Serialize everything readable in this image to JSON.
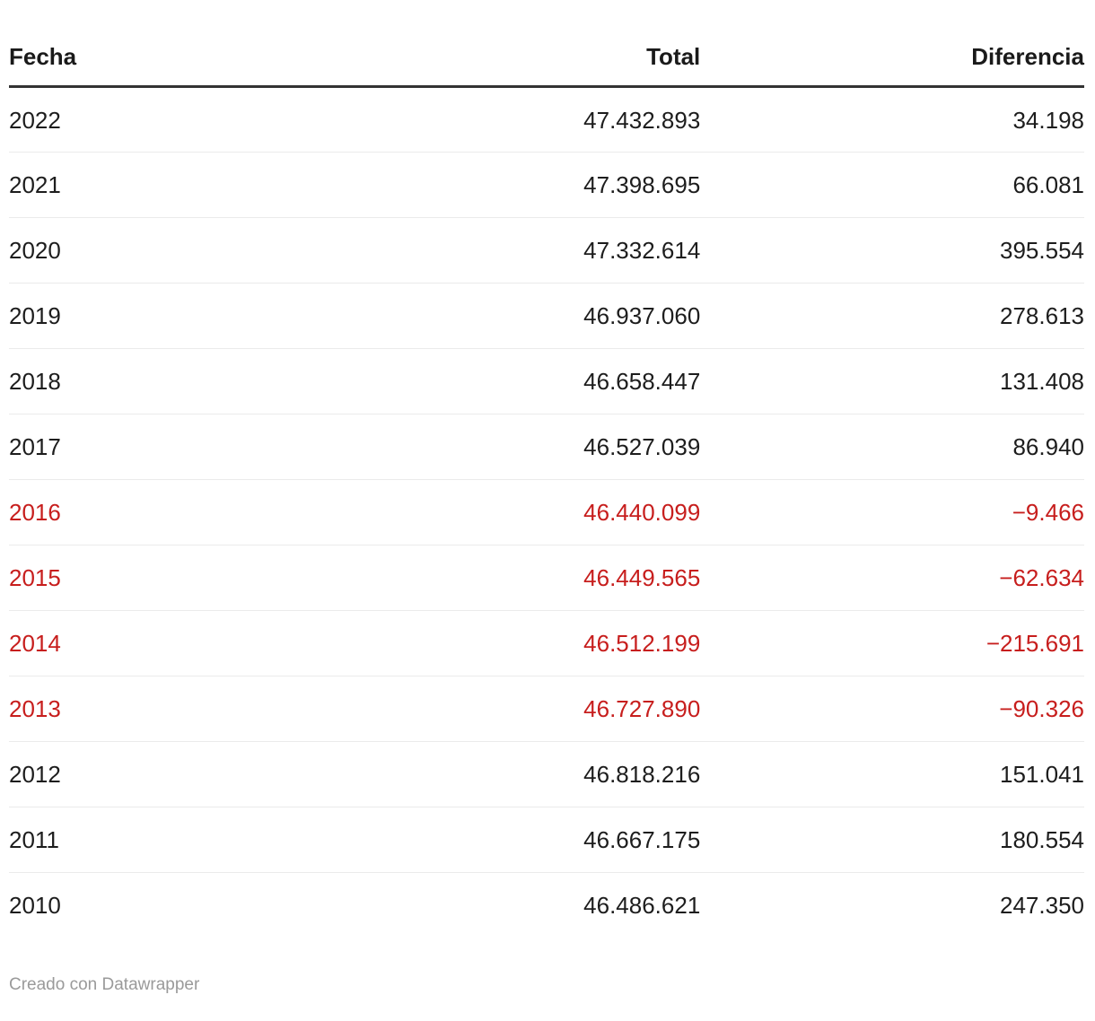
{
  "table": {
    "columns": [
      {
        "label": "Fecha",
        "align": "left"
      },
      {
        "label": "Total",
        "align": "right"
      },
      {
        "label": "Diferencia",
        "align": "right"
      }
    ],
    "rows": [
      {
        "fecha": "2022",
        "total": "47.432.893",
        "diferencia": "34.198",
        "negative": false
      },
      {
        "fecha": "2021",
        "total": "47.398.695",
        "diferencia": "66.081",
        "negative": false
      },
      {
        "fecha": "2020",
        "total": "47.332.614",
        "diferencia": "395.554",
        "negative": false
      },
      {
        "fecha": "2019",
        "total": "46.937.060",
        "diferencia": "278.613",
        "negative": false
      },
      {
        "fecha": "2018",
        "total": "46.658.447",
        "diferencia": "131.408",
        "negative": false
      },
      {
        "fecha": "2017",
        "total": "46.527.039",
        "diferencia": "86.940",
        "negative": false
      },
      {
        "fecha": "2016",
        "total": "46.440.099",
        "diferencia": "−9.466",
        "negative": true
      },
      {
        "fecha": "2015",
        "total": "46.449.565",
        "diferencia": "−62.634",
        "negative": true
      },
      {
        "fecha": "2014",
        "total": "46.512.199",
        "diferencia": "−215.691",
        "negative": true
      },
      {
        "fecha": "2013",
        "total": "46.727.890",
        "diferencia": "−90.326",
        "negative": true
      },
      {
        "fecha": "2012",
        "total": "46.818.216",
        "diferencia": "151.041",
        "negative": false
      },
      {
        "fecha": "2011",
        "total": "46.667.175",
        "diferencia": "180.554",
        "negative": false
      },
      {
        "fecha": "2010",
        "total": "46.486.621",
        "diferencia": "247.350",
        "negative": false
      }
    ]
  },
  "footer": {
    "attribution": "Creado con Datawrapper"
  },
  "colors": {
    "text": "#1d1d1d",
    "negative": "#c71e1d",
    "header_text": "#1a1a1a",
    "header_rule": "#333333",
    "row_divider": "#ebebeb",
    "footer_text": "#9a9a9a",
    "background": "#ffffff"
  },
  "chart_data": {
    "type": "table",
    "columns": [
      "Fecha",
      "Total",
      "Diferencia"
    ],
    "rows": [
      [
        2022,
        47432893,
        34198
      ],
      [
        2021,
        47398695,
        66081
      ],
      [
        2020,
        47332614,
        395554
      ],
      [
        2019,
        46937060,
        278613
      ],
      [
        2018,
        46658447,
        131408
      ],
      [
        2017,
        46527039,
        86940
      ],
      [
        2016,
        46440099,
        -9466
      ],
      [
        2015,
        46449565,
        -62634
      ],
      [
        2014,
        46512199,
        -215691
      ],
      [
        2013,
        46727890,
        -90326
      ],
      [
        2012,
        46818216,
        151041
      ],
      [
        2011,
        46667175,
        180554
      ],
      [
        2010,
        46486621,
        247350
      ]
    ],
    "negative_rows_years": [
      2016,
      2015,
      2014,
      2013
    ],
    "attribution": "Creado con Datawrapper"
  }
}
